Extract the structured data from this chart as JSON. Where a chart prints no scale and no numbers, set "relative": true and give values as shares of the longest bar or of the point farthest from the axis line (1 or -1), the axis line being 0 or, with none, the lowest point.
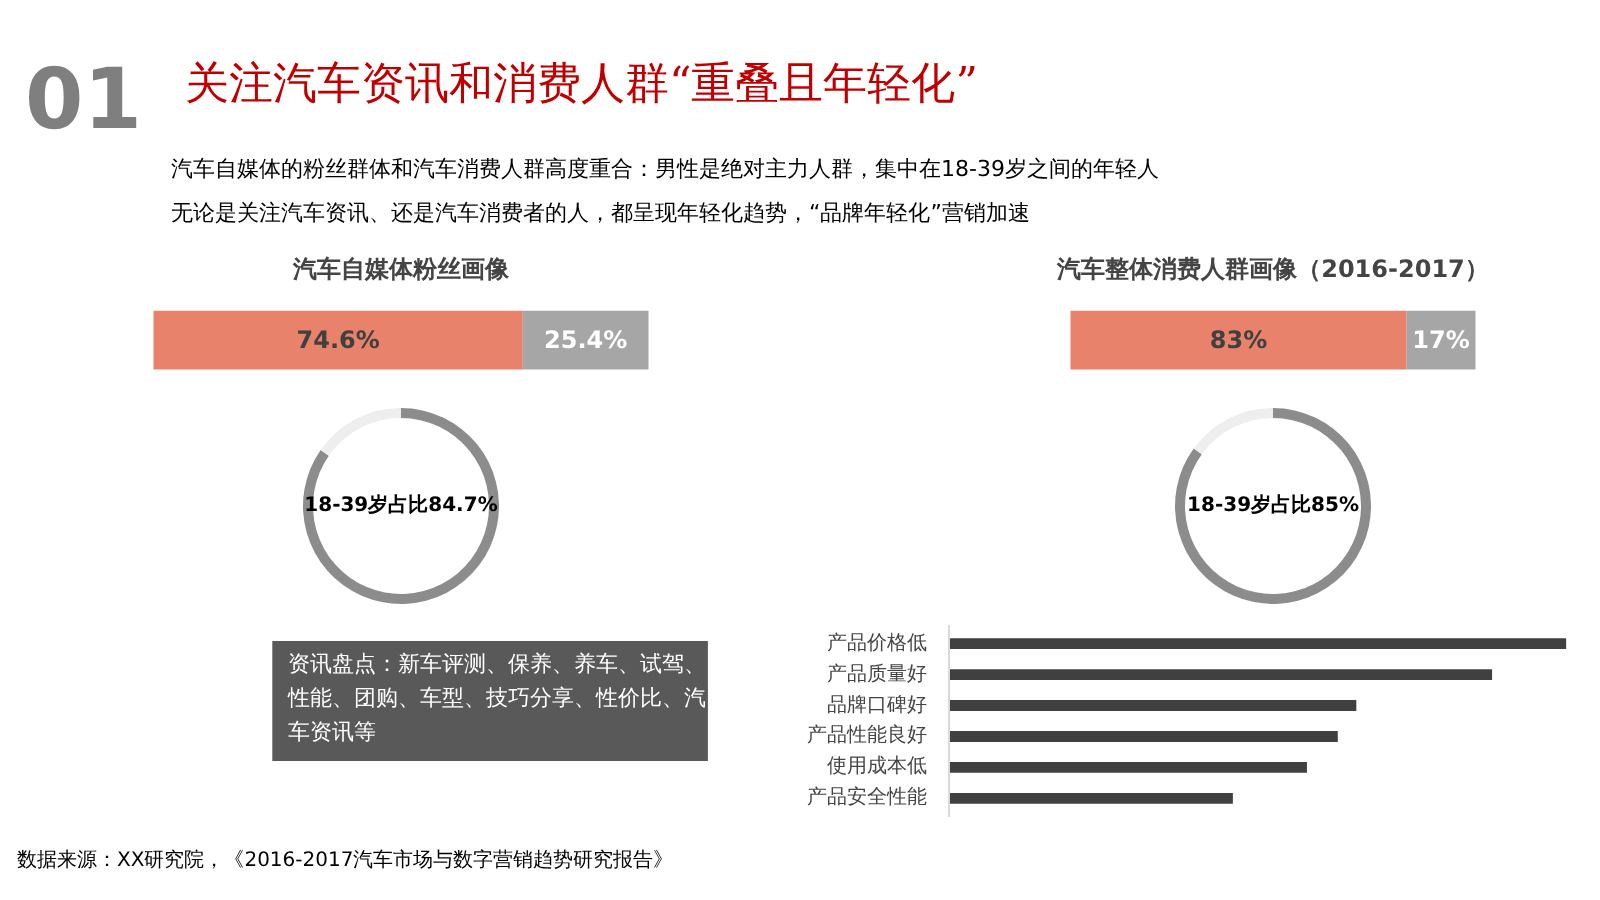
{
  "chart_data": [
    {
      "type": "other",
      "title": "关注汽车资讯和消费人群“重叠且年轻化”",
      "annotations": [
        "01",
        "汽车自媒体的粉丝群体和汽车消费人群高度重合：男性是绝对主力人群，集中在18-39岁之间的年轻人",
        "无论是关注汽车资讯、还是汽车消费者的人，都呈现年轻化趋势，“品牌年轻化”营销加速"
      ]
    },
    {
      "type": "bar",
      "title": "汽车自媒体粉丝画像",
      "orientation": "horizontal",
      "stacked": true,
      "categories": [
        null
      ],
      "xlim": [
        0,
        100
      ],
      "tick_labels": false,
      "series": [
        {
          "color": "#e8826a",
          "values": [
            74.6
          ],
          "value_labels": [
            "74.6%"
          ]
        },
        {
          "color": "#a6a6a6",
          "values": [
            25.4
          ],
          "value_labels": [
            "25.4%"
          ]
        }
      ]
    },
    {
      "type": "donut",
      "categories": [
        null,
        null
      ],
      "values": [
        84.7,
        15.3
      ],
      "colors": [
        "#8c8c8c",
        "#eeeeee"
      ],
      "annotations": [
        "18-39岁占比84.7%"
      ]
    },
    {
      "type": "other",
      "annotations": [
        "资讯盘点：新车评测、保养、养车、试驾、性能、团购、车型、技巧分享、性价比、汽车资讯等"
      ]
    },
    {
      "type": "bar",
      "title": "汽车整体消费人群画像（2016-2017）",
      "orientation": "horizontal",
      "stacked": true,
      "categories": [
        null
      ],
      "xlim": [
        0,
        100
      ],
      "tick_labels": false,
      "series": [
        {
          "color": "#e8826a",
          "values": [
            83
          ],
          "value_labels": [
            "83%"
          ]
        },
        {
          "color": "#a6a6a6",
          "values": [
            17
          ],
          "value_labels": [
            "17%"
          ]
        }
      ]
    },
    {
      "type": "donut",
      "categories": [
        null,
        null
      ],
      "values": [
        85,
        15
      ],
      "colors": [
        "#8c8c8c",
        "#eeeeee"
      ],
      "annotations": [
        "18-39岁占比85%"
      ]
    },
    {
      "type": "bar",
      "orientation": "horizontal",
      "relative": true,
      "categories": [
        "产品价格低",
        "产品质量好",
        "品牌口碑好",
        "产品性能良好",
        "使用成本低",
        "产品安全性能"
      ],
      "values": [
        1,
        0.88,
        0.66,
        0.63,
        0.58,
        0.46
      ],
      "color": "#404040"
    },
    {
      "type": "other",
      "annotations": [
        "数据来源：XX研究院，《2016-2017汽车市场与数字营销趋势研究报告》"
      ]
    }
  ]
}
